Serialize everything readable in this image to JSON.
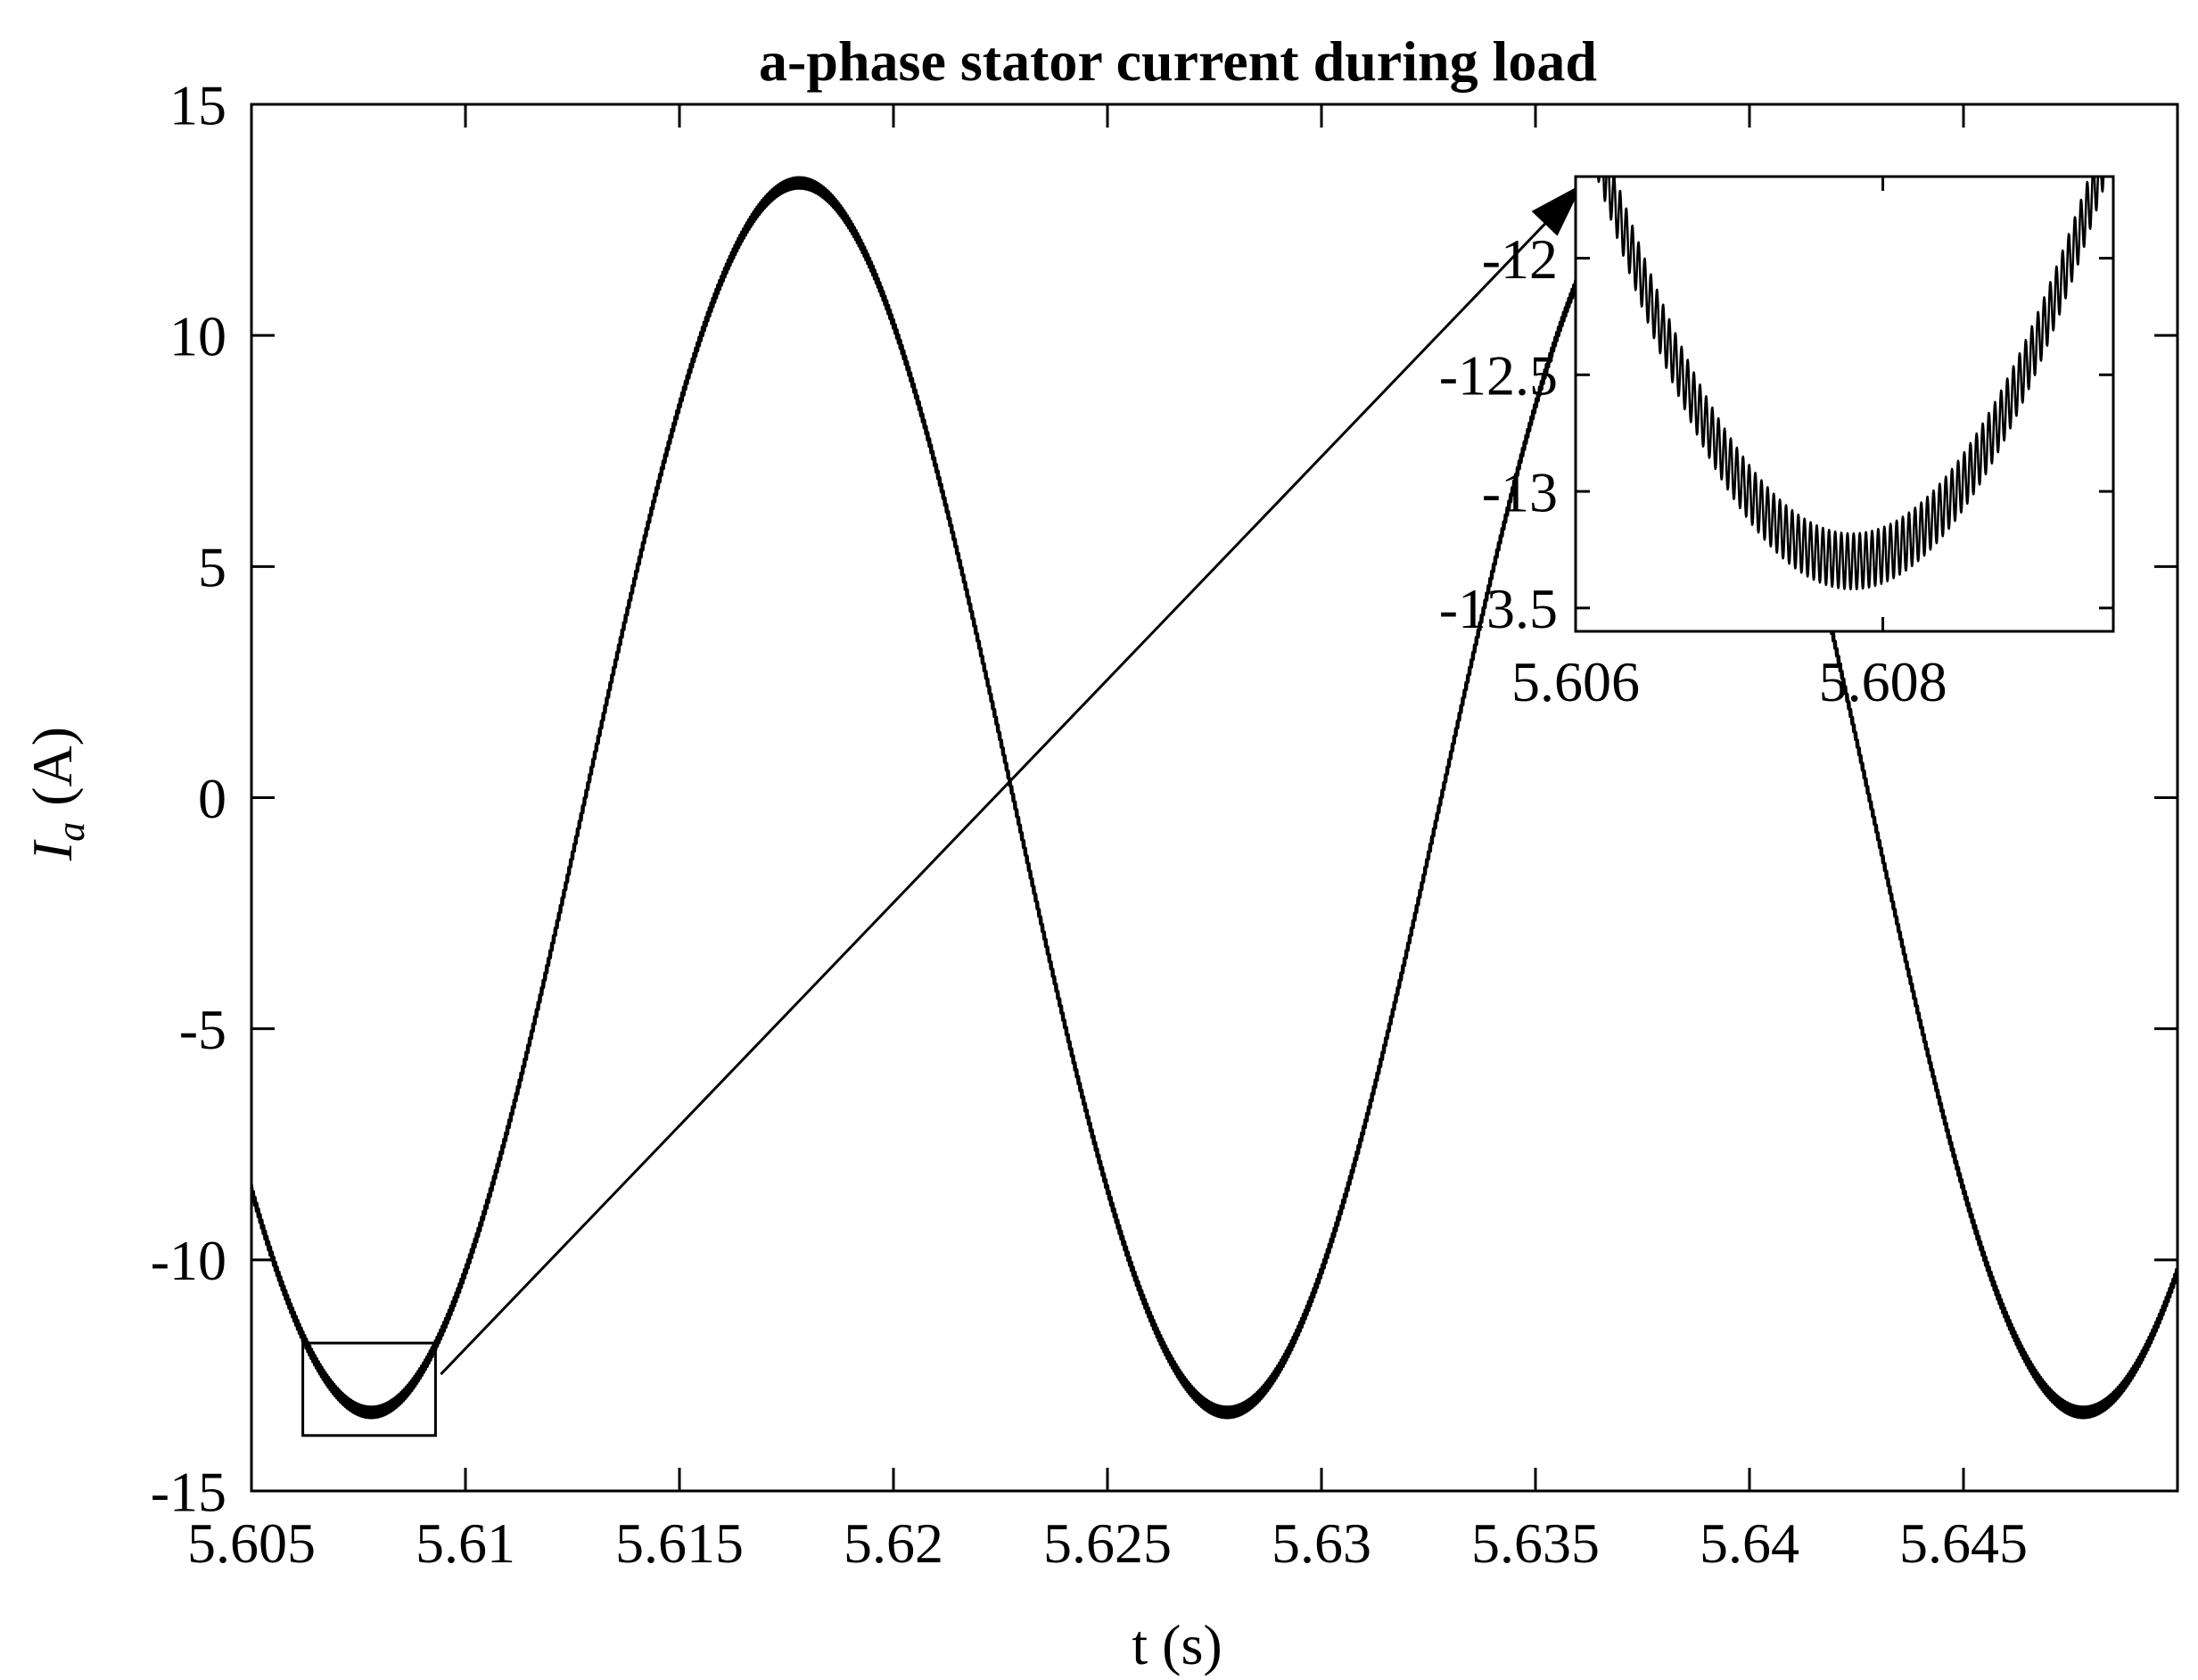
{
  "chart_data": [
    {
      "type": "line",
      "title": "a-phase stator current during load",
      "xlabel": "t (s)",
      "ylabel_main": "I",
      "ylabel_sub": "a",
      "ylabel_unit": "(A)",
      "xlim": [
        5.605,
        5.65
      ],
      "ylim": [
        -15,
        15
      ],
      "xticks": [
        5.605,
        5.61,
        5.615,
        5.62,
        5.625,
        5.63,
        5.635,
        5.64,
        5.645
      ],
      "xtick_labels": [
        "5.605",
        "5.61",
        "5.615",
        "5.62",
        "5.625",
        "5.63",
        "5.635",
        "5.64",
        "5.645"
      ],
      "yticks": [
        15,
        10,
        5,
        0,
        -5,
        -10,
        -15
      ],
      "ytick_labels": [
        "15",
        "10",
        "5",
        "0",
        "-5",
        "-10",
        "-15"
      ],
      "grid": false,
      "series": [
        {
          "color": "#000000",
          "signal": {
            "amplitude": 13.3,
            "frequency_hz": 50,
            "trough_time": 5.6078,
            "ripple_amplitude": 0.12,
            "ripple_frequency_hz": 25000
          }
        }
      ],
      "zoom_region": {
        "x": [
          5.6062,
          5.6093
        ],
        "y": [
          -13.8,
          -11.8
        ]
      }
    },
    {
      "type": "line",
      "inset": true,
      "xlim": [
        5.606,
        5.6095
      ],
      "ylim": [
        -13.6,
        -11.65
      ],
      "xticks": [
        5.606,
        5.608
      ],
      "xtick_labels": [
        "5.606",
        "5.608"
      ],
      "yticks": [
        -12,
        -12.5,
        -13,
        -13.5
      ],
      "ytick_labels": [
        "-12",
        "-12.5",
        "-13",
        "-13.5"
      ],
      "series": [
        {
          "color": "#000000",
          "signal": {
            "amplitude": 13.3,
            "frequency_hz": 50,
            "trough_time": 5.6078,
            "ripple_amplitude": 0.12,
            "ripple_frequency_hz": 25000
          }
        }
      ]
    }
  ]
}
